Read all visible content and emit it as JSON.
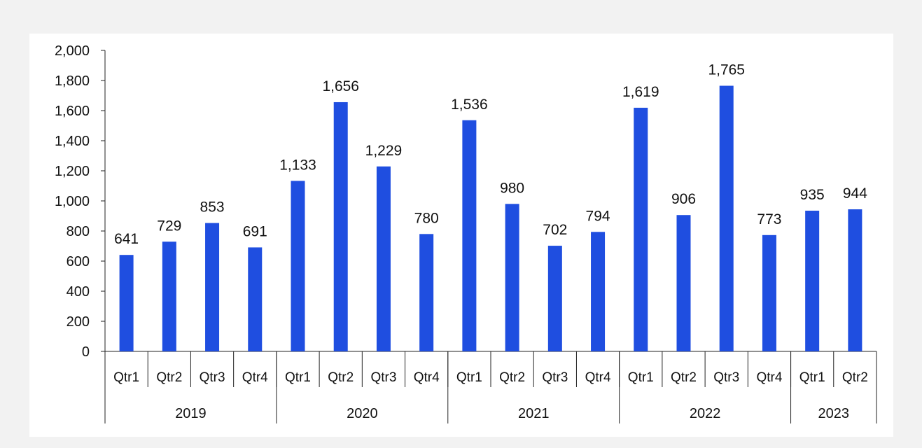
{
  "chart_data": {
    "type": "bar",
    "title": "",
    "xlabel": "",
    "ylabel": "",
    "ylim": [
      0,
      2000
    ],
    "yticks": [
      0,
      200,
      400,
      600,
      800,
      1000,
      1200,
      1400,
      1600,
      1800,
      2000
    ],
    "ytick_labels": [
      "0",
      "200",
      "400",
      "600",
      "800",
      "1,000",
      "1,200",
      "1,400",
      "1,600",
      "1,800",
      "2,000"
    ],
    "grid": false,
    "legend": "none",
    "bar_color": "#1f4ee0",
    "years": [
      {
        "label": "2019",
        "quarters": 4
      },
      {
        "label": "2020",
        "quarters": 4
      },
      {
        "label": "2021",
        "quarters": 4
      },
      {
        "label": "2022",
        "quarters": 4
      },
      {
        "label": "2023",
        "quarters": 2
      }
    ],
    "categories": [
      "Qtr1",
      "Qtr2",
      "Qtr3",
      "Qtr4",
      "Qtr1",
      "Qtr2",
      "Qtr3",
      "Qtr4",
      "Qtr1",
      "Qtr2",
      "Qtr3",
      "Qtr4",
      "Qtr1",
      "Qtr2",
      "Qtr3",
      "Qtr4",
      "Qtr1",
      "Qtr2"
    ],
    "values": [
      641,
      729,
      853,
      691,
      1133,
      1656,
      1229,
      780,
      1536,
      980,
      702,
      794,
      1619,
      906,
      1765,
      773,
      935,
      944
    ],
    "value_labels": [
      "641",
      "729",
      "853",
      "691",
      "1,133",
      "1,656",
      "1,229",
      "780",
      "1,536",
      "980",
      "702",
      "794",
      "1,619",
      "906",
      "1,765",
      "773",
      "935",
      "944"
    ]
  }
}
